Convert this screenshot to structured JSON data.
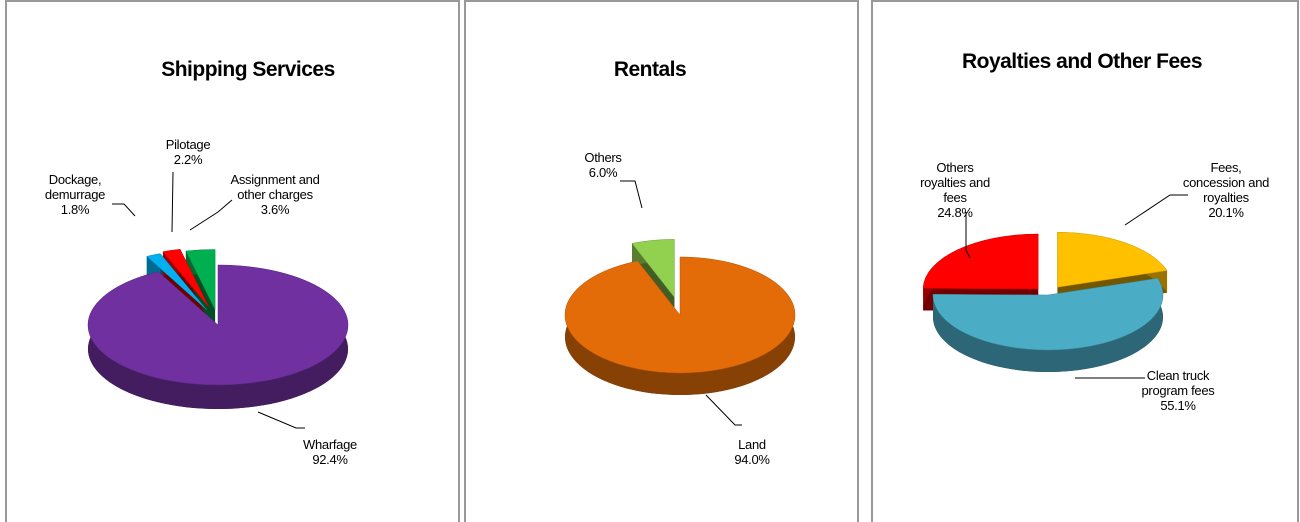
{
  "chart_data": [
    {
      "type": "pie",
      "title": "Shipping Services",
      "categories": [
        "Wharfage",
        "Dockage, demurrage",
        "Pilotage",
        "Assignment and other charges"
      ],
      "values": [
        92.4,
        1.8,
        2.2,
        3.6
      ],
      "value_labels": [
        "92.4%",
        "1.8%",
        "2.2%",
        "3.6%"
      ],
      "colors": [
        "#7030a0",
        "#00b0f0",
        "#ff0000",
        "#00b050"
      ]
    },
    {
      "type": "pie",
      "title": "Rentals",
      "categories": [
        "Land",
        "Others"
      ],
      "values": [
        94.0,
        6.0
      ],
      "value_labels": [
        "94.0%",
        "6.0%"
      ],
      "colors": [
        "#e36c09",
        "#92d050"
      ]
    },
    {
      "type": "pie",
      "title": "Royalties and Other Fees",
      "categories": [
        "Fees, concession and royalties",
        "Clean truck program fees",
        "Others royalties and fees"
      ],
      "values": [
        20.1,
        55.1,
        24.8
      ],
      "value_labels": [
        "20.1%",
        "55.1%",
        "24.8%"
      ],
      "colors": [
        "#ffc000",
        "#4bacc6",
        "#ff0000"
      ]
    }
  ]
}
